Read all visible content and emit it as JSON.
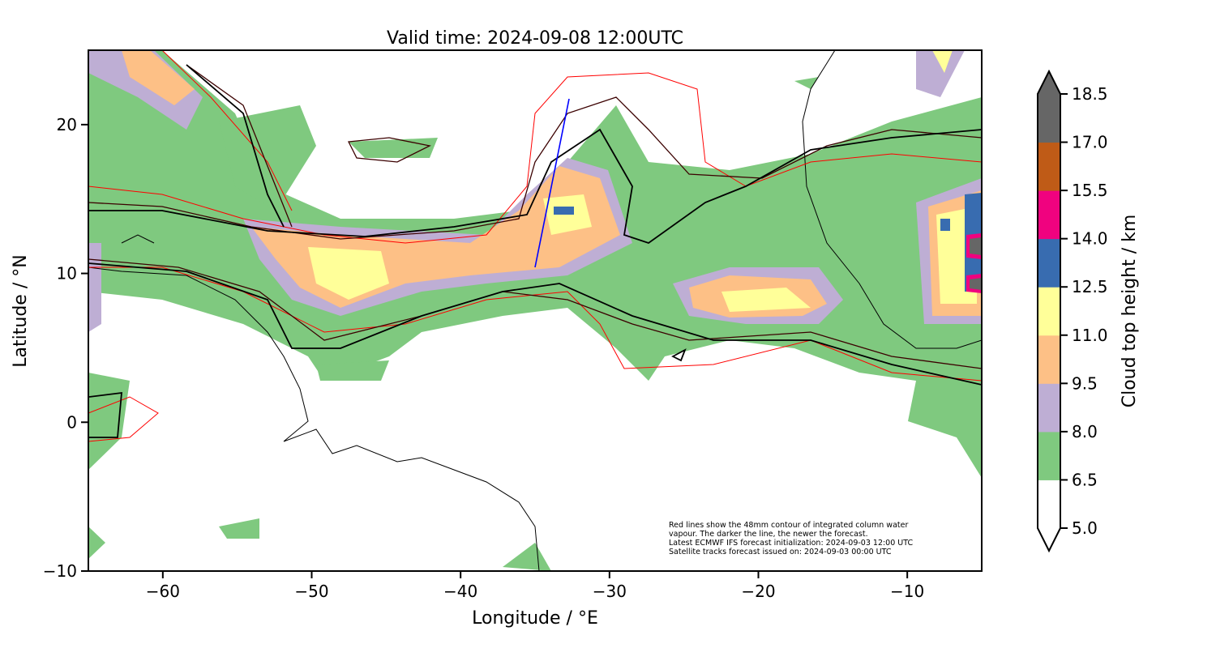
{
  "title": "Valid time: 2024-09-08 12:00UTC",
  "xaxis": {
    "label": "Longitude / °E",
    "ticks": [
      "−60",
      "−50",
      "−40",
      "−30",
      "−20",
      "−10"
    ],
    "tick_values": [
      -60,
      -50,
      -40,
      -30,
      -20,
      -10
    ],
    "range": [
      -65,
      -5
    ]
  },
  "yaxis": {
    "label": "Latitude / °N",
    "ticks": [
      "20",
      "10",
      "0",
      "−10"
    ],
    "tick_values": [
      20,
      10,
      0,
      -10
    ],
    "range": [
      -10,
      25
    ]
  },
  "colorbar": {
    "label": "Cloud top height / km",
    "ticks": [
      "5.0",
      "6.5",
      "8.0",
      "9.5",
      "11.0",
      "12.5",
      "14.0",
      "15.5",
      "17.0",
      "18.5"
    ],
    "colors": [
      "#ffffff",
      "#7fc97f",
      "#beaed4",
      "#fdc086",
      "#ffff99",
      "#386cb0",
      "#f0027f",
      "#bf5b17",
      "#666666"
    ]
  },
  "colors": {
    "track": "#0000ff",
    "iwv_new": "#3b0000",
    "iwv_old": "#ff0000",
    "coast": "#000000"
  },
  "annotation": [
    "Red lines show the 48mm contour of integrated column water",
    "vapour. The darker the line, the newer the forecast.",
    "Latest ECMWF IFS forecast initialization: 2024-09-03 12:00 UTC",
    "Satellite tracks forecast issued on: 2024-09-03 00:00 UTC"
  ]
}
